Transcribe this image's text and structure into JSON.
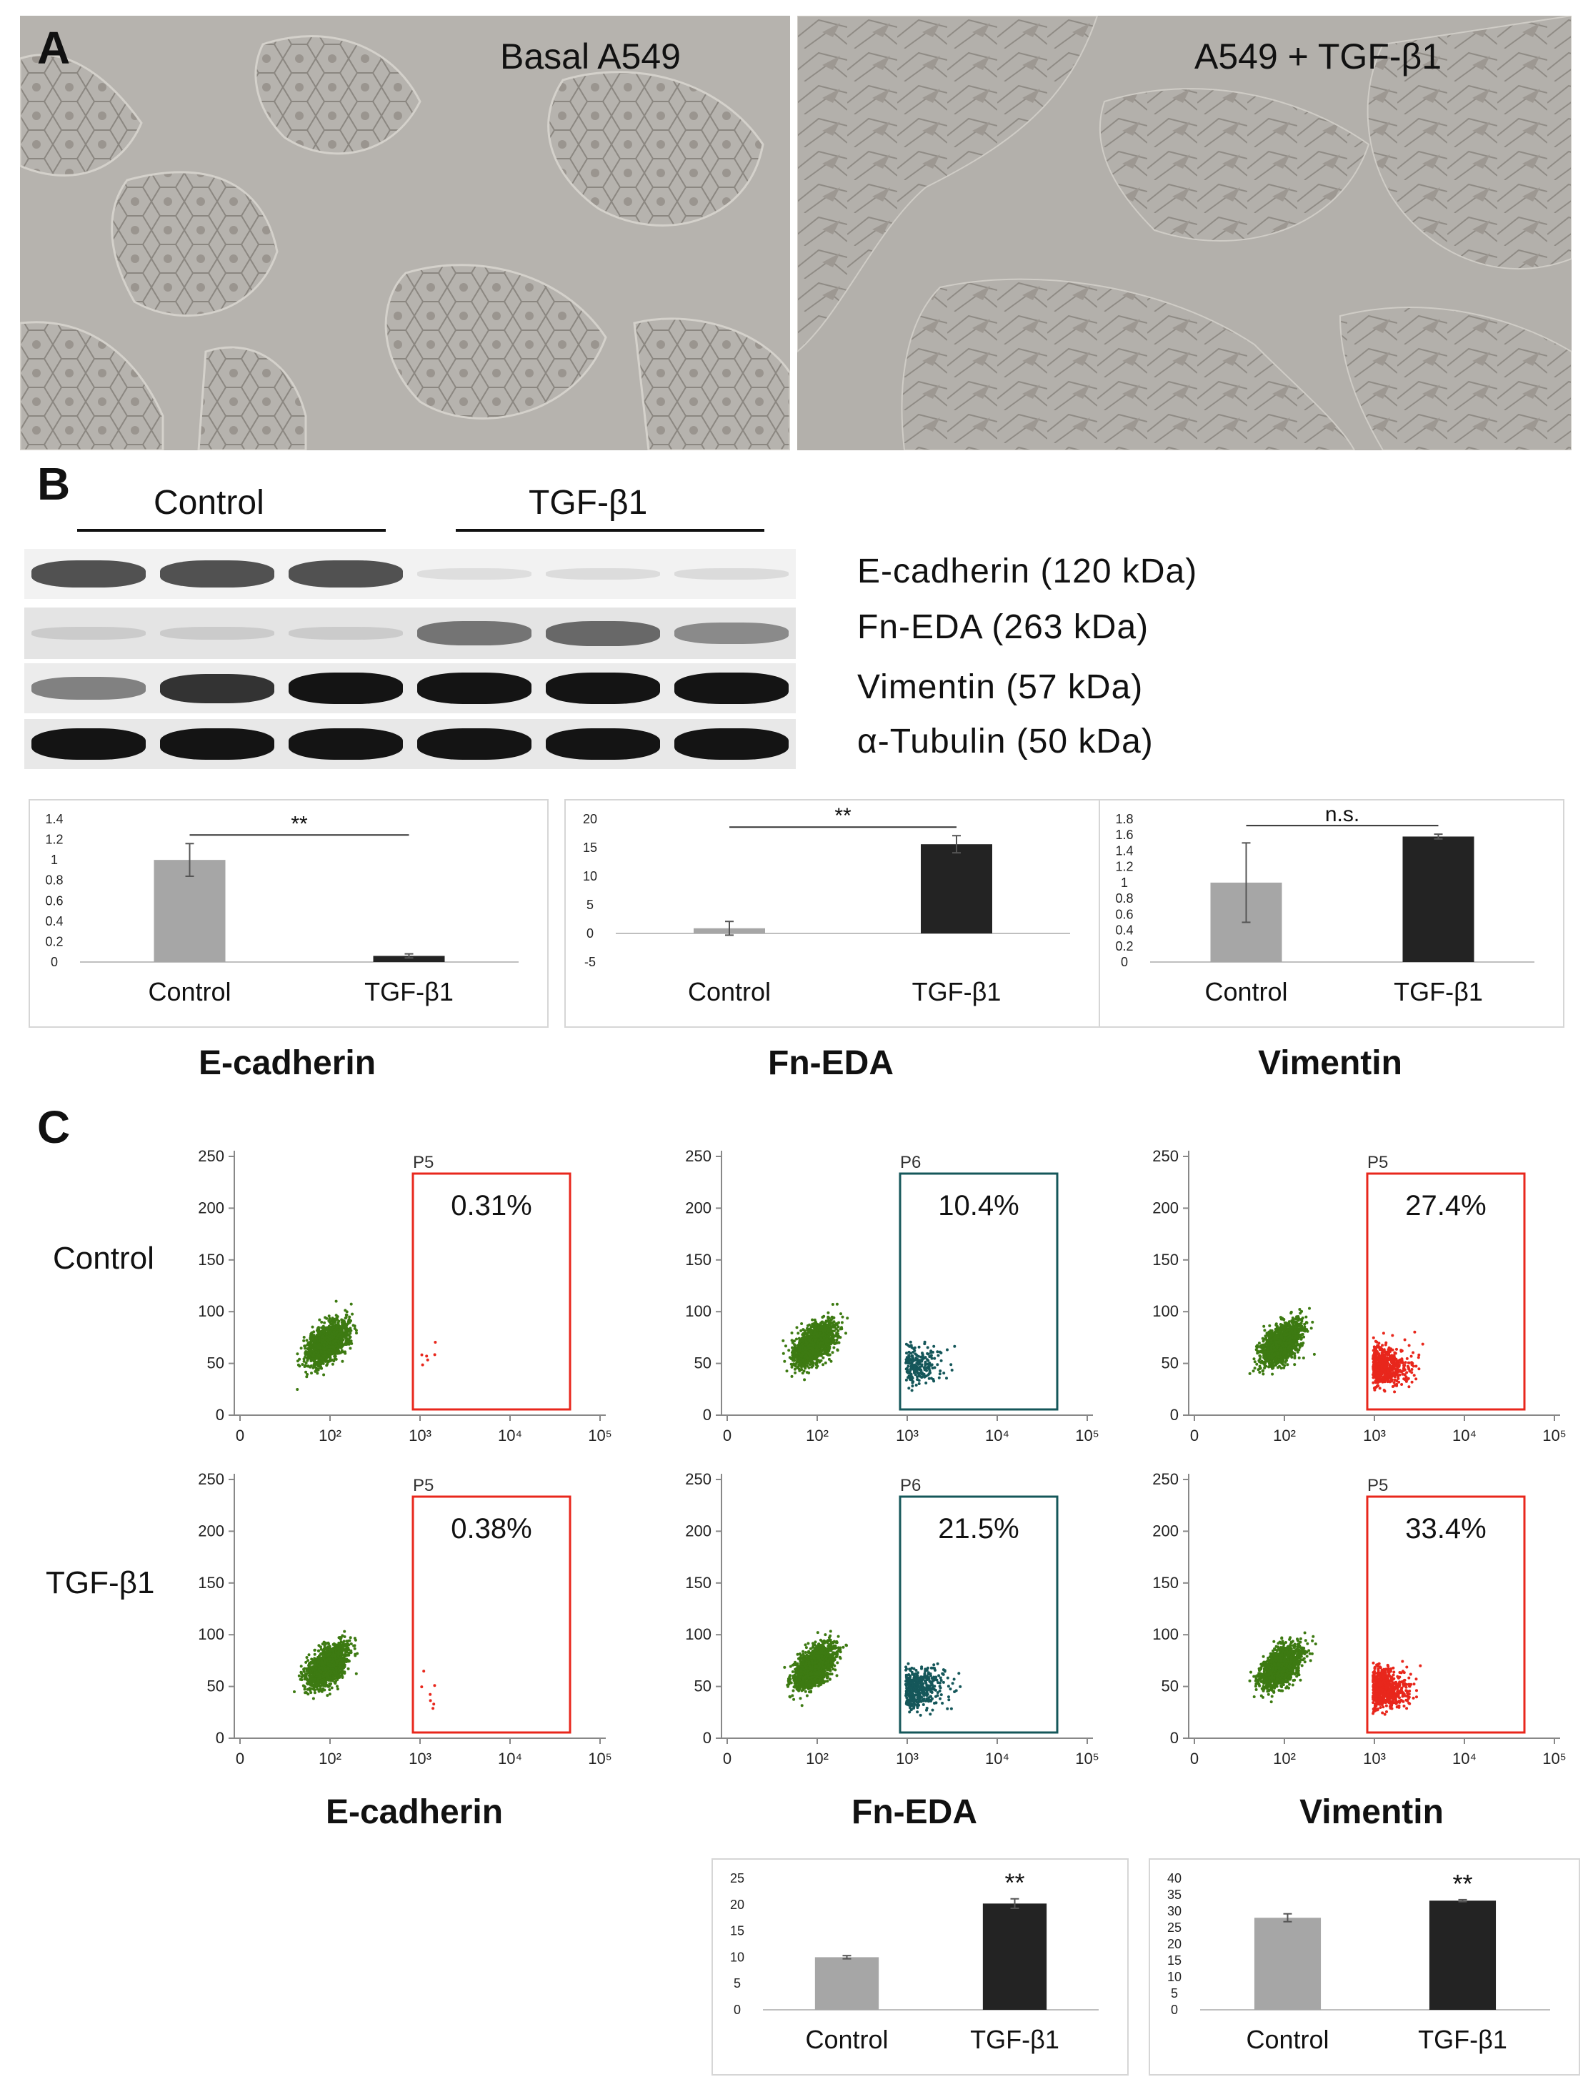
{
  "panels": {
    "a": "A",
    "b": "B",
    "c": "C"
  },
  "micrographs": {
    "left_caption": "Basal A549",
    "right_caption": "A549 + TGF-β1"
  },
  "western_blot": {
    "groups": [
      "Control",
      "TGF-β1"
    ],
    "bands": [
      {
        "label": "E-cadherin (120 kDa)",
        "intensity": [
          0.8,
          0.8,
          0.8,
          0.05,
          0.07,
          0.08
        ]
      },
      {
        "label": "Fn-EDA (263 kDa)",
        "intensity": [
          0.15,
          0.15,
          0.15,
          0.65,
          0.7,
          0.55
        ]
      },
      {
        "label": "Vimentin (57 kDa)",
        "intensity": [
          0.6,
          0.9,
          1.0,
          1.0,
          1.0,
          1.0
        ]
      },
      {
        "label": "α-Tubulin (50 kDa)",
        "intensity": [
          1.0,
          1.0,
          1.0,
          1.0,
          1.0,
          1.0
        ]
      }
    ]
  },
  "chart_data": [
    {
      "type": "bar",
      "title": "E-cadherin",
      "categories": [
        "Control",
        "TGF-β1"
      ],
      "values": [
        1.0,
        0.06
      ],
      "errors": [
        0.16,
        0.02
      ],
      "yticks": [
        "1.4",
        "1.2",
        "1",
        "0.8",
        "0.6",
        "0.4",
        "0.2",
        "0"
      ],
      "ylim": [
        0,
        1.4
      ],
      "significance": "**",
      "colors": [
        "#a6a6a6",
        "#232323"
      ]
    },
    {
      "type": "bar",
      "title": "Fn-EDA",
      "categories": [
        "Control",
        "TGF-β1"
      ],
      "values": [
        0.9,
        15.6
      ],
      "errors": [
        1.2,
        1.5
      ],
      "yticks": [
        "20",
        "15",
        "10",
        "5",
        "0",
        "-5"
      ],
      "ylim": [
        -5,
        20
      ],
      "significance": "**",
      "colors": [
        "#a6a6a6",
        "#232323"
      ]
    },
    {
      "type": "bar",
      "title": "Vimentin",
      "categories": [
        "Control",
        "TGF-β1"
      ],
      "values": [
        1.0,
        1.58
      ],
      "errors": [
        0.5,
        0.03
      ],
      "yticks": [
        "1.8",
        "1.6",
        "1.4",
        "1.2",
        "1",
        "0.8",
        "0.6",
        "0.4",
        "0.2",
        "0"
      ],
      "ylim": [
        0,
        1.8
      ],
      "significance": "n.s.",
      "colors": [
        "#a6a6a6",
        "#232323"
      ]
    },
    {
      "type": "bar",
      "title": "",
      "categories": [
        "Control",
        "TGF-β1"
      ],
      "values": [
        10.0,
        20.2
      ],
      "errors": [
        0.3,
        0.9
      ],
      "yticks": [
        "25",
        "20",
        "15",
        "10",
        "5",
        "0"
      ],
      "ylim": [
        0,
        25
      ],
      "significance": "**",
      "colors": [
        "#a6a6a6",
        "#232323"
      ]
    },
    {
      "type": "bar",
      "title": "",
      "categories": [
        "Control",
        "TGF-β1"
      ],
      "values": [
        28.0,
        33.2
      ],
      "errors": [
        1.2,
        0.3
      ],
      "yticks": [
        "40",
        "35",
        "30",
        "25",
        "20",
        "15",
        "10",
        "5",
        "0"
      ],
      "ylim": [
        0,
        40
      ],
      "significance": "**",
      "colors": [
        "#a6a6a6",
        "#232323"
      ]
    }
  ],
  "flow": {
    "row_labels": [
      "Control",
      "TGF-β1"
    ],
    "column_titles": [
      "E-cadherin",
      "Fn-EDA",
      "Vimentin"
    ],
    "yticks": [
      "250",
      "200",
      "150",
      "100",
      "50",
      "0"
    ],
    "xticks": [
      "0",
      "10²",
      "10³",
      "10⁴",
      "10⁵"
    ],
    "colors": {
      "green": "#3d7a12",
      "teal": "#15575a",
      "red": "#e8271c"
    },
    "plots": [
      {
        "gate": "P5",
        "percent": "0.31%",
        "gate_color": "#e8271c",
        "positive_color": "#e8271c",
        "positive_fraction": 0.0031
      },
      {
        "gate": "P6",
        "percent": "10.4%",
        "gate_color": "#15575a",
        "positive_color": "#15575a",
        "positive_fraction": 0.104
      },
      {
        "gate": "P5",
        "percent": "27.4%",
        "gate_color": "#e8271c",
        "positive_color": "#e8271c",
        "positive_fraction": 0.274
      },
      {
        "gate": "P5",
        "percent": "0.38%",
        "gate_color": "#e8271c",
        "positive_color": "#e8271c",
        "positive_fraction": 0.0038
      },
      {
        "gate": "P6",
        "percent": "21.5%",
        "gate_color": "#15575a",
        "positive_color": "#15575a",
        "positive_fraction": 0.215
      },
      {
        "gate": "P5",
        "percent": "33.4%",
        "gate_color": "#e8271c",
        "positive_color": "#e8271c",
        "positive_fraction": 0.334
      }
    ]
  }
}
